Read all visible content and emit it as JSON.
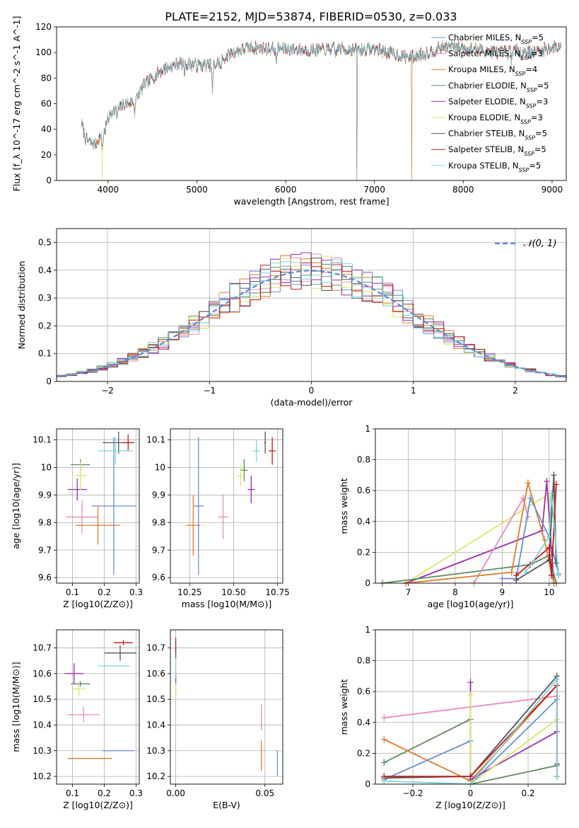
{
  "figure": {
    "title": "PLATE=2152, MJD=53874, FIBERID=0530, z=0.033"
  },
  "series": [
    {
      "name": "Chabrier MILES, N_SSP=5",
      "color": "#6a8fd6"
    },
    {
      "name": "Salpeter MILES, N_SSP=3",
      "color": "#e88bbf"
    },
    {
      "name": "Kroupa MILES, N_SSP=4",
      "color": "#e07b2b"
    },
    {
      "name": "Chabrier ELODIE, N_SSP=5",
      "color": "#5d8a64"
    },
    {
      "name": "Salpeter ELODIE, N_SSP=3",
      "color": "#9b2fae"
    },
    {
      "name": "Kroupa ELODIE, N_SSP=3",
      "color": "#d6e86a"
    },
    {
      "name": "Chabrier STELIB, N_SSP=5",
      "color": "#555555"
    },
    {
      "name": "Salpeter STELIB, N_SSP=5",
      "color": "#c41a1a"
    },
    {
      "name": "Kroupa STELIB, N_SSP=5",
      "color": "#7fd3dc"
    }
  ],
  "chart_data": [
    {
      "id": "spectrum",
      "type": "line",
      "xlabel": "wavelength [Angstrom, rest frame]",
      "ylabel": "Flux [f_λ 10^-17 erg cm^-2 s^-1 A^-1]",
      "xlim": [
        3420,
        9160
      ],
      "ylim": [
        0,
        120
      ],
      "xticks": [
        4000,
        5000,
        6000,
        7000,
        8000,
        9000
      ],
      "yticks": [
        0,
        20,
        40,
        60,
        80,
        100,
        120
      ],
      "grid": false,
      "legend": "right",
      "continuum": [
        [
          3700,
          45
        ],
        [
          3750,
          32
        ],
        [
          3850,
          28
        ],
        [
          3900,
          33
        ],
        [
          3950,
          36
        ],
        [
          4000,
          48
        ],
        [
          4050,
          55
        ],
        [
          4100,
          55
        ],
        [
          4200,
          60
        ],
        [
          4300,
          62
        ],
        [
          4400,
          74
        ],
        [
          4600,
          86
        ],
        [
          4800,
          92
        ],
        [
          5000,
          90
        ],
        [
          5200,
          90
        ],
        [
          5400,
          100
        ],
        [
          5600,
          104
        ],
        [
          5800,
          103
        ],
        [
          6000,
          103
        ],
        [
          6200,
          102
        ],
        [
          6400,
          102
        ],
        [
          6600,
          103
        ],
        [
          6800,
          102
        ],
        [
          7000,
          103
        ],
        [
          7200,
          99
        ],
        [
          7400,
          96
        ],
        [
          7600,
          100
        ],
        [
          7800,
          105
        ],
        [
          8000,
          104
        ],
        [
          8200,
          102
        ],
        [
          8400,
          100
        ],
        [
          8600,
          102
        ],
        [
          8800,
          100
        ],
        [
          9000,
          104
        ],
        [
          9100,
          105
        ]
      ],
      "absorption_features": [
        [
          3934,
          -10
        ],
        [
          4102,
          -6
        ],
        [
          4300,
          -8
        ],
        [
          4861,
          -8
        ],
        [
          5175,
          -22
        ],
        [
          5270,
          -8
        ],
        [
          5893,
          -12
        ],
        [
          6563,
          -6
        ],
        [
          8498,
          -4
        ],
        [
          8542,
          -6
        ],
        [
          8662,
          -5
        ]
      ],
      "drops": [
        {
          "series": 5,
          "x": 3935
        },
        {
          "series": 3,
          "x": 6800
        },
        {
          "series": 2,
          "x": 7420
        }
      ]
    },
    {
      "id": "residuals",
      "type": "histogram",
      "xlabel": "(data-model)/error",
      "ylabel": "Normed distribution",
      "xlim": [
        -2.5,
        2.5
      ],
      "ylim": [
        0,
        0.55
      ],
      "xticks": [
        -2,
        -1,
        0,
        1,
        2
      ],
      "yticks": [
        0.0,
        0.1,
        0.2,
        0.3,
        0.4,
        0.5
      ],
      "grid": true,
      "legend": "top-right",
      "reference": {
        "name": "𝒩(0, 1)",
        "mean": 0,
        "sigma": 1,
        "color": "#5b8ad8"
      },
      "bin_width": 0.1
    },
    {
      "id": "age-vs-Z",
      "type": "scatter",
      "xlabel": "Z [log10(Z/Z⊙)]",
      "ylabel": "age [log10(age/yr)]",
      "xlim": [
        0.05,
        0.31
      ],
      "ylim": [
        9.58,
        10.14
      ],
      "xticks": [
        0.1,
        0.2,
        0.3
      ],
      "yticks": [
        9.6,
        9.7,
        9.8,
        9.9,
        10.0,
        10.1
      ],
      "grid": true,
      "points": [
        {
          "s": 0,
          "x": 0.23,
          "y": 9.86,
          "ex": 0.07,
          "ey": 0.25
        },
        {
          "s": 1,
          "x": 0.13,
          "y": 9.82,
          "ex": 0.05,
          "ey": 0.06
        },
        {
          "s": 2,
          "x": 0.18,
          "y": 9.79,
          "ex": 0.07,
          "ey": 0.07
        },
        {
          "s": 3,
          "x": 0.125,
          "y": 10.01,
          "ex": 0.03,
          "ey": 0.02
        },
        {
          "s": 4,
          "x": 0.115,
          "y": 9.92,
          "ex": 0.03,
          "ey": 0.04
        },
        {
          "s": 5,
          "x": 0.125,
          "y": 9.97,
          "ex": 0.02,
          "ey": 0.05
        },
        {
          "s": 6,
          "x": 0.245,
          "y": 10.09,
          "ex": 0.05,
          "ey": 0.04
        },
        {
          "s": 7,
          "x": 0.275,
          "y": 10.09,
          "ex": 0.015,
          "ey": 0.03
        },
        {
          "s": 8,
          "x": 0.235,
          "y": 10.06,
          "ex": 0.055,
          "ey": 0.05
        }
      ]
    },
    {
      "id": "age-vs-mass",
      "type": "scatter",
      "xlabel": "mass [log10(M/M⊙)]",
      "ylabel": "",
      "xlim": [
        10.14,
        10.78
      ],
      "ylim": [
        9.58,
        10.14
      ],
      "xticks": [
        10.25,
        10.5,
        10.75
      ],
      "yticks": [
        9.6,
        9.7,
        9.8,
        9.9,
        10.0,
        10.1
      ],
      "grid": true,
      "points": [
        {
          "s": 0,
          "x": 10.3,
          "y": 9.86,
          "ex": 0.03,
          "ey": 0.25
        },
        {
          "s": 1,
          "x": 10.44,
          "y": 9.82,
          "ex": 0.03,
          "ey": 0.08
        },
        {
          "s": 2,
          "x": 10.27,
          "y": 9.79,
          "ex": 0.04,
          "ey": 0.11
        },
        {
          "s": 3,
          "x": 10.56,
          "y": 9.99,
          "ex": 0.02,
          "ey": 0.04
        },
        {
          "s": 4,
          "x": 10.6,
          "y": 9.92,
          "ex": 0.02,
          "ey": 0.05
        },
        {
          "s": 5,
          "x": 10.54,
          "y": 9.97,
          "ex": 0.02,
          "ey": 0.04
        },
        {
          "s": 6,
          "x": 10.68,
          "y": 10.09,
          "ex": 0.005,
          "ey": 0.04
        },
        {
          "s": 7,
          "x": 10.72,
          "y": 10.06,
          "ex": 0.02,
          "ey": 0.05
        },
        {
          "s": 8,
          "x": 10.63,
          "y": 10.06,
          "ex": 0.02,
          "ey": 0.04
        }
      ]
    },
    {
      "id": "mass-weight-vs-age",
      "type": "line",
      "xlabel": "age [log10(age/yr)]",
      "ylabel": "mass weight",
      "xlim": [
        6.3,
        10.35
      ],
      "ylim": [
        0,
        1.0
      ],
      "xticks": [
        7,
        8,
        9,
        10
      ],
      "yticks": [
        0.0,
        0.2,
        0.4,
        0.6,
        0.8,
        1.0
      ],
      "grid": true,
      "lines": [
        {
          "s": 5,
          "x": [
            6.95,
            10.0,
            10.1
          ],
          "y": [
            0.0,
            0.58,
            0.4
          ]
        },
        {
          "s": 4,
          "x": [
            6.95,
            9.85,
            9.95,
            10.1
          ],
          "y": [
            0.0,
            0.34,
            0.66,
            0.0
          ]
        },
        {
          "s": 3,
          "x": [
            6.45,
            9.6,
            10.0,
            10.15
          ],
          "y": [
            0.0,
            0.12,
            0.18,
            0.0
          ]
        },
        {
          "s": 1,
          "x": [
            8.4,
            9.45,
            9.55
          ],
          "y": [
            0.0,
            0.55,
            0.43
          ]
        },
        {
          "s": 2,
          "x": [
            6.95,
            9.2,
            9.55,
            9.9,
            10.1
          ],
          "y": [
            0.0,
            0.07,
            0.65,
            0.28,
            0.0
          ]
        },
        {
          "s": 0,
          "x": [
            9.0,
            9.3,
            9.6,
            10.0,
            10.2
          ],
          "y": [
            0.03,
            0.03,
            0.55,
            0.3,
            0.06
          ]
        },
        {
          "s": 6,
          "x": [
            9.3,
            10.0,
            10.1,
            10.15
          ],
          "y": [
            0.02,
            0.15,
            0.7,
            0.13
          ]
        },
        {
          "s": 7,
          "x": [
            9.3,
            10.0,
            10.05,
            10.15
          ],
          "y": [
            0.05,
            0.23,
            0.05,
            0.64
          ]
        },
        {
          "s": 8,
          "x": [
            9.5,
            10.0,
            10.05,
            10.2
          ],
          "y": [
            0.07,
            0.3,
            0.58,
            0.05
          ]
        }
      ]
    },
    {
      "id": "mass-vs-Z",
      "type": "scatter",
      "xlabel": "Z [log10(Z/Z⊙)]",
      "ylabel": "mass [log10(M/M⊙)]",
      "xlim": [
        0.05,
        0.31
      ],
      "ylim": [
        10.17,
        10.77
      ],
      "xticks": [
        0.1,
        0.2,
        0.3
      ],
      "yticks": [
        10.2,
        10.3,
        10.4,
        10.5,
        10.6,
        10.7
      ],
      "grid": true,
      "points": [
        {
          "s": 0,
          "x": 0.245,
          "y": 10.3,
          "ex": 0.05,
          "ey": 0.0
        },
        {
          "s": 1,
          "x": 0.135,
          "y": 10.44,
          "ex": 0.05,
          "ey": 0.03
        },
        {
          "s": 2,
          "x": 0.155,
          "y": 10.27,
          "ex": 0.07,
          "ey": 0.0
        },
        {
          "s": 3,
          "x": 0.125,
          "y": 10.56,
          "ex": 0.03,
          "ey": 0.01
        },
        {
          "s": 4,
          "x": 0.105,
          "y": 10.6,
          "ex": 0.03,
          "ey": 0.04
        },
        {
          "s": 5,
          "x": 0.12,
          "y": 10.54,
          "ex": 0.02,
          "ey": 0.03
        },
        {
          "s": 6,
          "x": 0.25,
          "y": 10.68,
          "ex": 0.05,
          "ey": 0.03
        },
        {
          "s": 7,
          "x": 0.26,
          "y": 10.72,
          "ex": 0.03,
          "ey": 0.01
        },
        {
          "s": 8,
          "x": 0.23,
          "y": 10.63,
          "ex": 0.05,
          "ey": 0.0
        }
      ]
    },
    {
      "id": "mass-vs-EBV",
      "type": "scatter",
      "xlabel": "E(B-V)",
      "ylabel": "",
      "xlim": [
        -0.003,
        0.06
      ],
      "ylim": [
        10.17,
        10.77
      ],
      "xticks": [
        0.0,
        0.05
      ],
      "yticks": [
        10.2,
        10.3,
        10.4,
        10.5,
        10.6,
        10.7
      ],
      "grid": true,
      "points": [
        {
          "s": 0,
          "x": 0.057,
          "y": 10.25,
          "ex": 0,
          "ey": 0.05
        },
        {
          "s": 1,
          "x": 0.048,
          "y": 10.43,
          "ex": 0,
          "ey": 0.05
        },
        {
          "s": 2,
          "x": 0.048,
          "y": 10.28,
          "ex": 0,
          "ey": 0.06
        },
        {
          "s": 3,
          "x": 0.0,
          "y": 10.56,
          "ex": 0,
          "ey": 0.03
        },
        {
          "s": 4,
          "x": 0.0,
          "y": 10.59,
          "ex": 0,
          "ey": 0.02
        },
        {
          "s": 5,
          "x": 0.0,
          "y": 10.53,
          "ex": 0,
          "ey": 0.03
        },
        {
          "s": 6,
          "x": 0.0,
          "y": 10.68,
          "ex": 0,
          "ey": 0.02
        },
        {
          "s": 7,
          "x": 0.0,
          "y": 10.71,
          "ex": 0,
          "ey": 0.03
        },
        {
          "s": 8,
          "x": 0.0,
          "y": 10.62,
          "ex": 0,
          "ey": 0.04
        }
      ]
    },
    {
      "id": "mass-weight-vs-Z",
      "type": "line",
      "xlabel": "Z [log10(Z/Z⊙)]",
      "ylabel": "mass weight",
      "xlim": [
        -0.33,
        0.33
      ],
      "ylim": [
        0,
        1.0
      ],
      "xticks": [
        -0.2,
        0.0,
        0.2
      ],
      "yticks": [
        0.0,
        0.2,
        0.4,
        0.6,
        0.8,
        1.0
      ],
      "grid": true,
      "lines": [
        {
          "s": 1,
          "x": [
            -0.3,
            0.3
          ],
          "y": [
            0.43,
            0.57
          ]
        },
        {
          "s": 3,
          "x": [
            -0.3,
            0.0,
            0.0,
            0.3
          ],
          "y": [
            0.14,
            0.42,
            0.0,
            0.12
          ]
        },
        {
          "s": 2,
          "x": [
            -0.3,
            0.0,
            0.3
          ],
          "y": [
            0.29,
            0.02,
            0.64
          ]
        },
        {
          "s": 0,
          "x": [
            -0.3,
            0.0,
            0.0,
            0.3
          ],
          "y": [
            0.03,
            0.28,
            0.0,
            0.55
          ]
        },
        {
          "s": 4,
          "x": [
            0.0,
            0.0,
            0.3
          ],
          "y": [
            0.66,
            0.03,
            0.34
          ]
        },
        {
          "s": 5,
          "x": [
            0.0,
            0.0,
            0.3
          ],
          "y": [
            0.58,
            0.0,
            0.42
          ]
        },
        {
          "s": 6,
          "x": [
            -0.3,
            0.0,
            0.3,
            0.3
          ],
          "y": [
            0.04,
            0.05,
            0.7,
            0.13
          ]
        },
        {
          "s": 7,
          "x": [
            -0.3,
            0.0,
            0.3,
            0.3
          ],
          "y": [
            0.05,
            0.05,
            0.64,
            0.05
          ]
        },
        {
          "s": 8,
          "x": [
            -0.3,
            0.0,
            0.3,
            0.3
          ],
          "y": [
            0.02,
            0.0,
            0.68,
            0.05
          ]
        }
      ]
    }
  ]
}
